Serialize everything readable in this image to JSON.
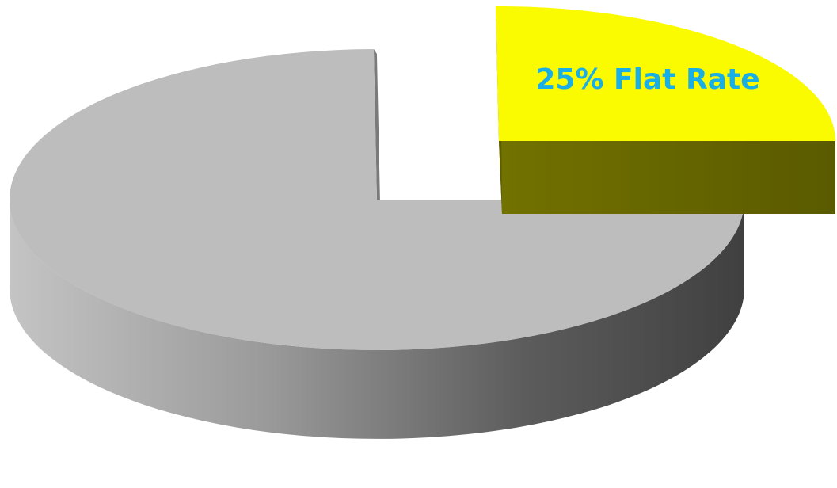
{
  "chart_data": {
    "type": "pie",
    "style": "3d-exploded",
    "title": "",
    "slices": [
      {
        "label": "25% Flat Rate",
        "value": 25,
        "color": "#FAFA00",
        "side_color": "#666600",
        "exploded": true,
        "show_label": true
      },
      {
        "label": "",
        "value": 75,
        "color": "#BDBDBD",
        "side_color": "#8A8A8A",
        "exploded": false,
        "show_label": false
      }
    ],
    "label_color": "#1AAEE6",
    "legend": "none"
  }
}
